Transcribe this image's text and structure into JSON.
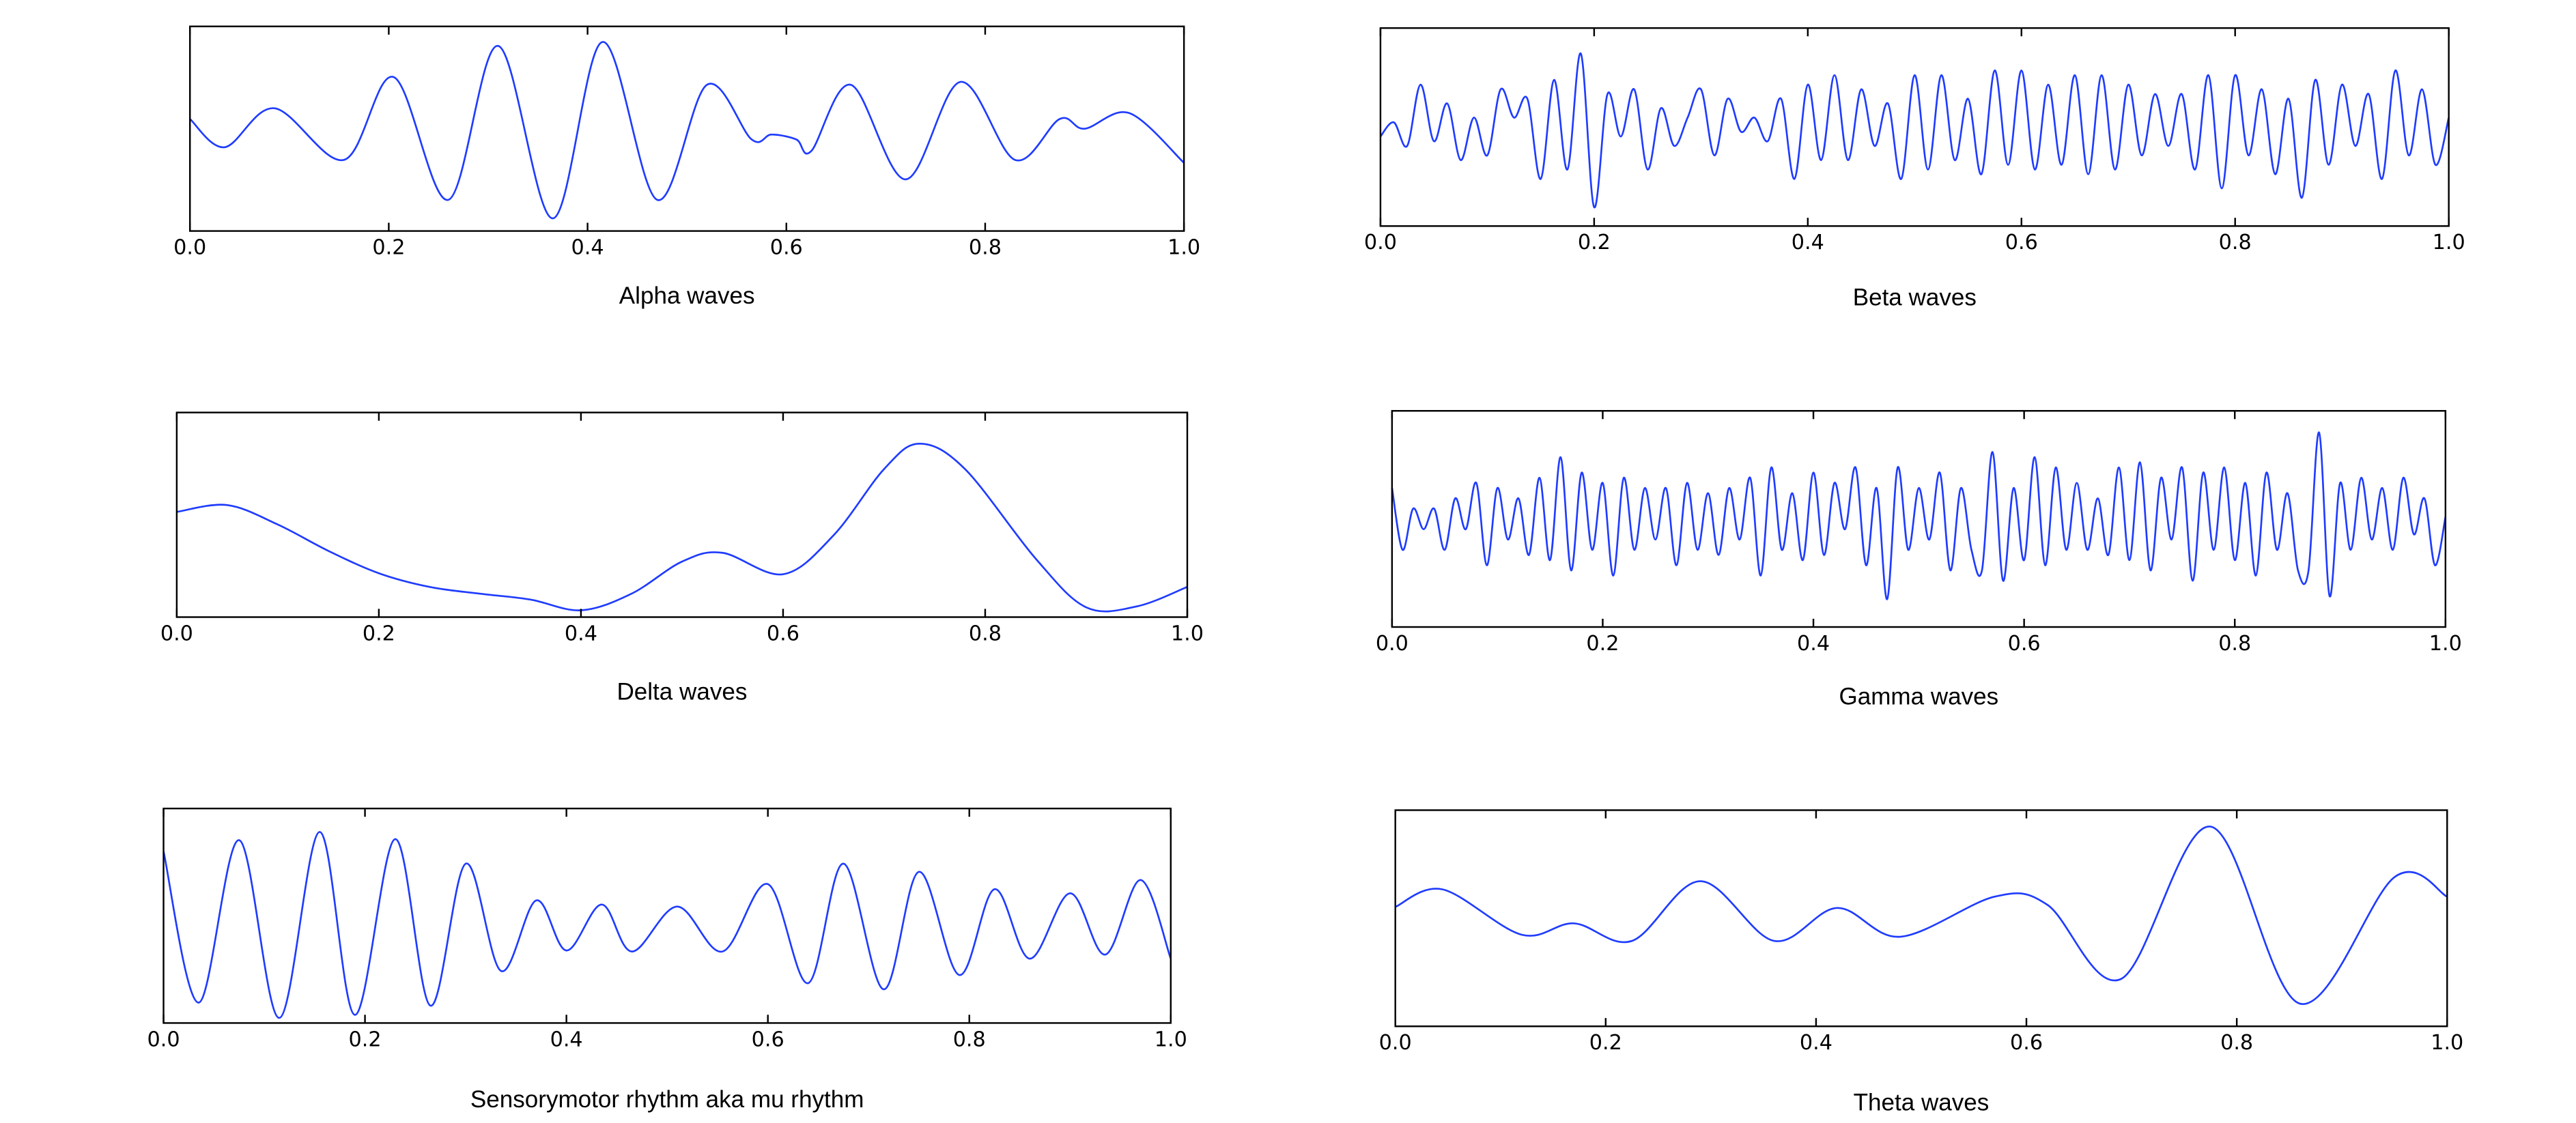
{
  "chart_data": [
    {
      "type": "line",
      "x_label": "Alpha waves",
      "color": "#1f3cff",
      "xlim": [
        0,
        1
      ],
      "ylim": [
        -1.05,
        1.05
      ],
      "xticks": [
        {
          "value": 0,
          "label": "0.0"
        },
        0.2,
        0.4,
        0.6,
        0.8,
        {
          "value": 1,
          "label": "1.0"
        }
      ],
      "x": [
        0,
        0.035,
        0.085,
        0.155,
        0.205,
        0.26,
        0.31,
        0.365,
        0.415,
        0.47,
        0.52,
        0.565,
        0.585,
        0.61,
        0.625,
        0.665,
        0.72,
        0.775,
        0.83,
        0.875,
        0.9,
        0.945,
        1
      ],
      "values": [
        0.1,
        -0.19,
        0.21,
        -0.32,
        0.53,
        -0.73,
        0.85,
        -0.92,
        0.89,
        -0.73,
        0.45,
        -0.11,
        -0.06,
        -0.11,
        -0.23,
        0.45,
        -0.52,
        0.48,
        -0.32,
        0.1,
        0,
        0.16,
        -0.35
      ]
    },
    {
      "type": "line",
      "x_label": "Beta waves",
      "color": "#1f3cff",
      "xlim": [
        0,
        1
      ],
      "ylim": [
        -1.05,
        1.05
      ],
      "xticks": [
        {
          "value": 0,
          "label": "0.0"
        },
        0.2,
        0.4,
        0.6,
        0.8,
        {
          "value": 1,
          "label": "1.0"
        }
      ],
      "x": [
        0,
        0.0125,
        0.025,
        0.0375,
        0.05,
        0.0625,
        0.075,
        0.0875,
        0.1,
        0.1125,
        0.125,
        0.1375,
        0.15,
        0.1625,
        0.175,
        0.1875,
        0.2,
        0.2125,
        0.225,
        0.2375,
        0.25,
        0.2625,
        0.275,
        0.2875,
        0.3,
        0.3125,
        0.325,
        0.3375,
        0.35,
        0.3625,
        0.375,
        0.3875,
        0.4,
        0.4125,
        0.425,
        0.4375,
        0.45,
        0.4625,
        0.475,
        0.4875,
        0.5,
        0.5125,
        0.525,
        0.5375,
        0.55,
        0.5625,
        0.575,
        0.5875,
        0.6,
        0.6125,
        0.625,
        0.6375,
        0.65,
        0.6625,
        0.675,
        0.6875,
        0.7,
        0.7125,
        0.725,
        0.7375,
        0.75,
        0.7625,
        0.775,
        0.7875,
        0.8,
        0.8125,
        0.825,
        0.8375,
        0.85,
        0.8625,
        0.875,
        0.8875,
        0.9,
        0.9125,
        0.925,
        0.9375,
        0.95,
        0.9625,
        0.975,
        0.9875,
        1
      ],
      "values": [
        -0.1,
        0.05,
        -0.2,
        0.45,
        -0.15,
        0.25,
        -0.35,
        0.1,
        -0.3,
        0.4,
        0.1,
        0.3,
        -0.55,
        0.5,
        -0.45,
        0.78,
        -0.85,
        0.35,
        -0.1,
        0.4,
        -0.45,
        0.2,
        -0.2,
        0.1,
        0.4,
        -0.3,
        0.3,
        -0.05,
        0.1,
        -0.15,
        0.3,
        -0.55,
        0.45,
        -0.35,
        0.55,
        -0.35,
        0.4,
        -0.2,
        0.25,
        -0.55,
        0.55,
        -0.45,
        0.55,
        -0.35,
        0.3,
        -0.5,
        0.6,
        -0.4,
        0.6,
        -0.45,
        0.45,
        -0.4,
        0.55,
        -0.5,
        0.55,
        -0.45,
        0.45,
        -0.3,
        0.35,
        -0.2,
        0.35,
        -0.45,
        0.55,
        -0.65,
        0.55,
        -0.3,
        0.4,
        -0.5,
        0.3,
        -0.75,
        0.5,
        -0.4,
        0.45,
        -0.2,
        0.35,
        -0.55,
        0.6,
        -0.3,
        0.4,
        -0.4,
        0.1
      ]
    },
    {
      "type": "line",
      "x_label": "Delta waves",
      "color": "#1f3cff",
      "xlim": [
        0,
        1
      ],
      "ylim": [
        -1.05,
        1.05
      ],
      "xticks": [
        {
          "value": 0,
          "label": "0.0"
        },
        0.2,
        0.4,
        0.6,
        0.8,
        {
          "value": 1,
          "label": "1.0"
        }
      ],
      "x": [
        0,
        0.05,
        0.1,
        0.15,
        0.2,
        0.25,
        0.3,
        0.35,
        0.4,
        0.45,
        0.5,
        0.54,
        0.6,
        0.65,
        0.7,
        0.735,
        0.78,
        0.85,
        0.9,
        0.95,
        1
      ],
      "values": [
        0.03,
        0.1,
        -0.1,
        -0.37,
        -0.6,
        -0.74,
        -0.81,
        -0.87,
        -0.98,
        -0.81,
        -0.48,
        -0.39,
        -0.61,
        -0.21,
        0.47,
        0.73,
        0.47,
        -0.45,
        -0.95,
        -0.94,
        -0.74
      ]
    },
    {
      "type": "line",
      "x_label": "Gamma waves",
      "color": "#1f3cff",
      "xlim": [
        0,
        1
      ],
      "ylim": [
        -1.05,
        1.05
      ],
      "xticks": [
        {
          "value": 0,
          "label": "0.0"
        },
        0.2,
        0.4,
        0.6,
        0.8,
        {
          "value": 1,
          "label": "1.0"
        }
      ],
      "x": [
        0,
        0.01,
        0.02,
        0.03,
        0.04,
        0.05,
        0.06,
        0.07,
        0.08,
        0.09,
        0.1,
        0.11,
        0.12,
        0.13,
        0.14,
        0.15,
        0.16,
        0.17,
        0.18,
        0.19,
        0.2,
        0.21,
        0.22,
        0.23,
        0.24,
        0.25,
        0.26,
        0.27,
        0.28,
        0.29,
        0.3,
        0.31,
        0.32,
        0.33,
        0.34,
        0.35,
        0.36,
        0.37,
        0.38,
        0.39,
        0.4,
        0.41,
        0.42,
        0.43,
        0.44,
        0.45,
        0.46,
        0.47,
        0.48,
        0.49,
        0.5,
        0.51,
        0.52,
        0.53,
        0.54,
        0.55,
        0.56,
        0.57,
        0.58,
        0.59,
        0.6,
        0.61,
        0.62,
        0.63,
        0.64,
        0.65,
        0.66,
        0.67,
        0.68,
        0.69,
        0.7,
        0.71,
        0.72,
        0.73,
        0.74,
        0.75,
        0.76,
        0.77,
        0.78,
        0.79,
        0.8,
        0.81,
        0.82,
        0.83,
        0.84,
        0.85,
        0.86,
        0.87,
        0.88,
        0.89,
        0.9,
        0.91,
        0.92,
        0.93,
        0.94,
        0.95,
        0.96,
        0.97,
        0.98,
        0.99,
        1
      ],
      "values": [
        0.3,
        -0.3,
        0.1,
        -0.1,
        0.1,
        -0.3,
        0.2,
        -0.1,
        0.35,
        -0.45,
        0.3,
        -0.2,
        0.2,
        -0.35,
        0.4,
        -0.4,
        0.6,
        -0.5,
        0.45,
        -0.3,
        0.35,
        -0.55,
        0.4,
        -0.3,
        0.3,
        -0.2,
        0.3,
        -0.45,
        0.35,
        -0.3,
        0.25,
        -0.35,
        0.3,
        -0.2,
        0.4,
        -0.55,
        0.5,
        -0.3,
        0.25,
        -0.4,
        0.45,
        -0.35,
        0.35,
        -0.1,
        0.5,
        -0.45,
        0.3,
        -0.78,
        0.5,
        -0.3,
        0.3,
        -0.2,
        0.45,
        -0.5,
        0.3,
        -0.3,
        -0.5,
        0.65,
        -0.6,
        0.3,
        -0.4,
        0.6,
        -0.45,
        0.5,
        -0.3,
        0.35,
        -0.3,
        0.2,
        -0.35,
        0.5,
        -0.4,
        0.55,
        -0.5,
        0.4,
        -0.2,
        0.5,
        -0.6,
        0.45,
        -0.3,
        0.5,
        -0.4,
        0.35,
        -0.55,
        0.45,
        -0.3,
        0.25,
        -0.5,
        -0.5,
        0.84,
        -0.75,
        0.35,
        -0.3,
        0.4,
        -0.2,
        0.3,
        -0.3,
        0.4,
        -0.15,
        0.2,
        -0.45,
        0.02
      ]
    },
    {
      "type": "line",
      "x_label": "Sensorymotor rhythm aka mu rhythm",
      "color": "#1f3cff",
      "xlim": [
        0,
        1
      ],
      "ylim": [
        -1.05,
        1.05
      ],
      "xticks": [
        {
          "value": 0,
          "label": "0.0"
        },
        0.2,
        0.4,
        0.6,
        0.8,
        {
          "value": 1,
          "label": "1.0"
        }
      ],
      "x": [
        0,
        0.035,
        0.075,
        0.115,
        0.155,
        0.19,
        0.23,
        0.265,
        0.3,
        0.335,
        0.37,
        0.4,
        0.435,
        0.465,
        0.51,
        0.555,
        0.6,
        0.64,
        0.675,
        0.715,
        0.75,
        0.79,
        0.825,
        0.86,
        0.9,
        0.935,
        0.97,
        1
      ],
      "values": [
        0.63,
        -0.85,
        0.74,
        -1.0,
        0.82,
        -0.97,
        0.75,
        -0.88,
        0.51,
        -0.54,
        0.15,
        -0.34,
        0.11,
        -0.35,
        0.09,
        -0.35,
        0.31,
        -0.66,
        0.51,
        -0.72,
        0.43,
        -0.58,
        0.26,
        -0.42,
        0.22,
        -0.38,
        0.35,
        -0.42
      ]
    },
    {
      "type": "line",
      "x_label": "Theta waves",
      "color": "#1f3cff",
      "xlim": [
        0,
        1
      ],
      "ylim": [
        -1.05,
        1.05
      ],
      "xticks": [
        {
          "value": 0,
          "label": "0.0"
        },
        0.2,
        0.4,
        0.6,
        0.8,
        {
          "value": 1,
          "label": "1.0"
        }
      ],
      "x": [
        0,
        0.045,
        0.12,
        0.17,
        0.225,
        0.29,
        0.36,
        0.42,
        0.48,
        0.57,
        0.62,
        0.69,
        0.775,
        0.86,
        0.95,
        1
      ],
      "values": [
        0.11,
        0.28,
        -0.16,
        -0.05,
        -0.22,
        0.36,
        -0.22,
        0.1,
        -0.18,
        0.21,
        0.13,
        -0.59,
        0.89,
        -0.83,
        0.4,
        0.21
      ]
    }
  ]
}
